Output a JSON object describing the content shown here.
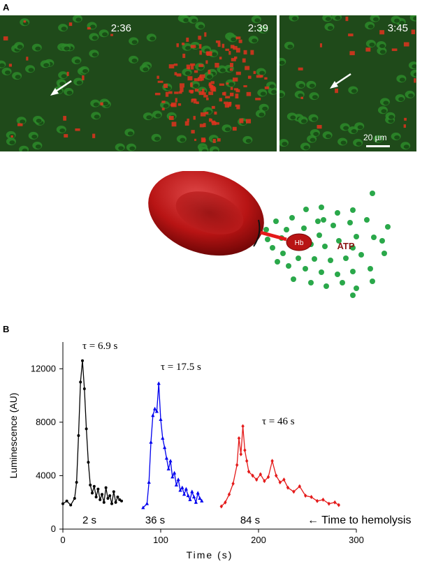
{
  "panel_a": {
    "letter": "A",
    "frames": [
      {
        "time": "2:36",
        "arrow": true
      },
      {
        "time": "2:39",
        "arrow": false
      },
      {
        "time": "3:45",
        "arrow": true
      }
    ],
    "scalebar": "20 µm"
  },
  "diagram": {
    "hb_label": "Hb",
    "atp_label": "ATP",
    "colors": {
      "cell": "#b81414",
      "atp": "#2aa84a",
      "arrow": "#e41a1a"
    }
  },
  "panel_b": {
    "letter": "B"
  },
  "chart_data": {
    "type": "line",
    "xlabel": "Time (s)",
    "ylabel": "Luminescence (AU)",
    "xlim": [
      0,
      300
    ],
    "ylim": [
      0,
      14000
    ],
    "xticks": [
      0,
      100,
      200,
      300
    ],
    "yticks": [
      0,
      4000,
      8000,
      12000
    ],
    "grid": false,
    "annotation_time_label": "← Time to hemolysis",
    "series": [
      {
        "color": "#000000",
        "marker": "circle",
        "tau_label": "τ = 6.9 s",
        "time_label": "2 s",
        "x": [
          0,
          4,
          8,
          12,
          14,
          16,
          18,
          20,
          22,
          24,
          26,
          28,
          30,
          32,
          34,
          36,
          38,
          40,
          42,
          44,
          46,
          48,
          50,
          52,
          54,
          56,
          58,
          60
        ],
        "y": [
          1900,
          2100,
          1800,
          2300,
          3500,
          7000,
          11000,
          12600,
          10500,
          7500,
          5000,
          3300,
          2700,
          3200,
          2400,
          3000,
          2200,
          2600,
          2000,
          3100,
          2300,
          2500,
          1900,
          2800,
          2000,
          2400,
          2200,
          2100
        ]
      },
      {
        "color": "#0000ee",
        "marker": "triangle",
        "tau_label": "τ = 17.5 s",
        "time_label": "36 s",
        "x": [
          82,
          86,
          88,
          90,
          92,
          94,
          96,
          98,
          100,
          102,
          104,
          106,
          108,
          110,
          112,
          114,
          116,
          118,
          120,
          122,
          124,
          126,
          128,
          130,
          132,
          134,
          136,
          138,
          140,
          142
        ],
        "y": [
          1600,
          1900,
          3500,
          6500,
          8500,
          9000,
          8800,
          10900,
          8200,
          6800,
          6100,
          5300,
          4500,
          5100,
          3900,
          4200,
          3300,
          3700,
          2900,
          3100,
          2600,
          3000,
          2500,
          2200,
          2800,
          2400,
          2000,
          2700,
          2300,
          2100
        ]
      },
      {
        "color": "#e41a1a",
        "marker": "diamond",
        "tau_label": "τ = 46 s",
        "time_label": "84 s",
        "x": [
          162,
          166,
          170,
          174,
          178,
          180,
          182,
          184,
          186,
          188,
          190,
          194,
          198,
          202,
          206,
          210,
          214,
          218,
          222,
          226,
          230,
          236,
          242,
          248,
          254,
          260,
          266,
          272,
          278,
          282
        ],
        "y": [
          1700,
          2000,
          2600,
          3400,
          4800,
          6800,
          5600,
          7700,
          5900,
          5100,
          4300,
          4000,
          3700,
          4100,
          3600,
          3900,
          5100,
          4000,
          3500,
          3700,
          3100,
          2800,
          3200,
          2500,
          2400,
          2100,
          2200,
          1900,
          2000,
          1800
        ]
      }
    ]
  }
}
